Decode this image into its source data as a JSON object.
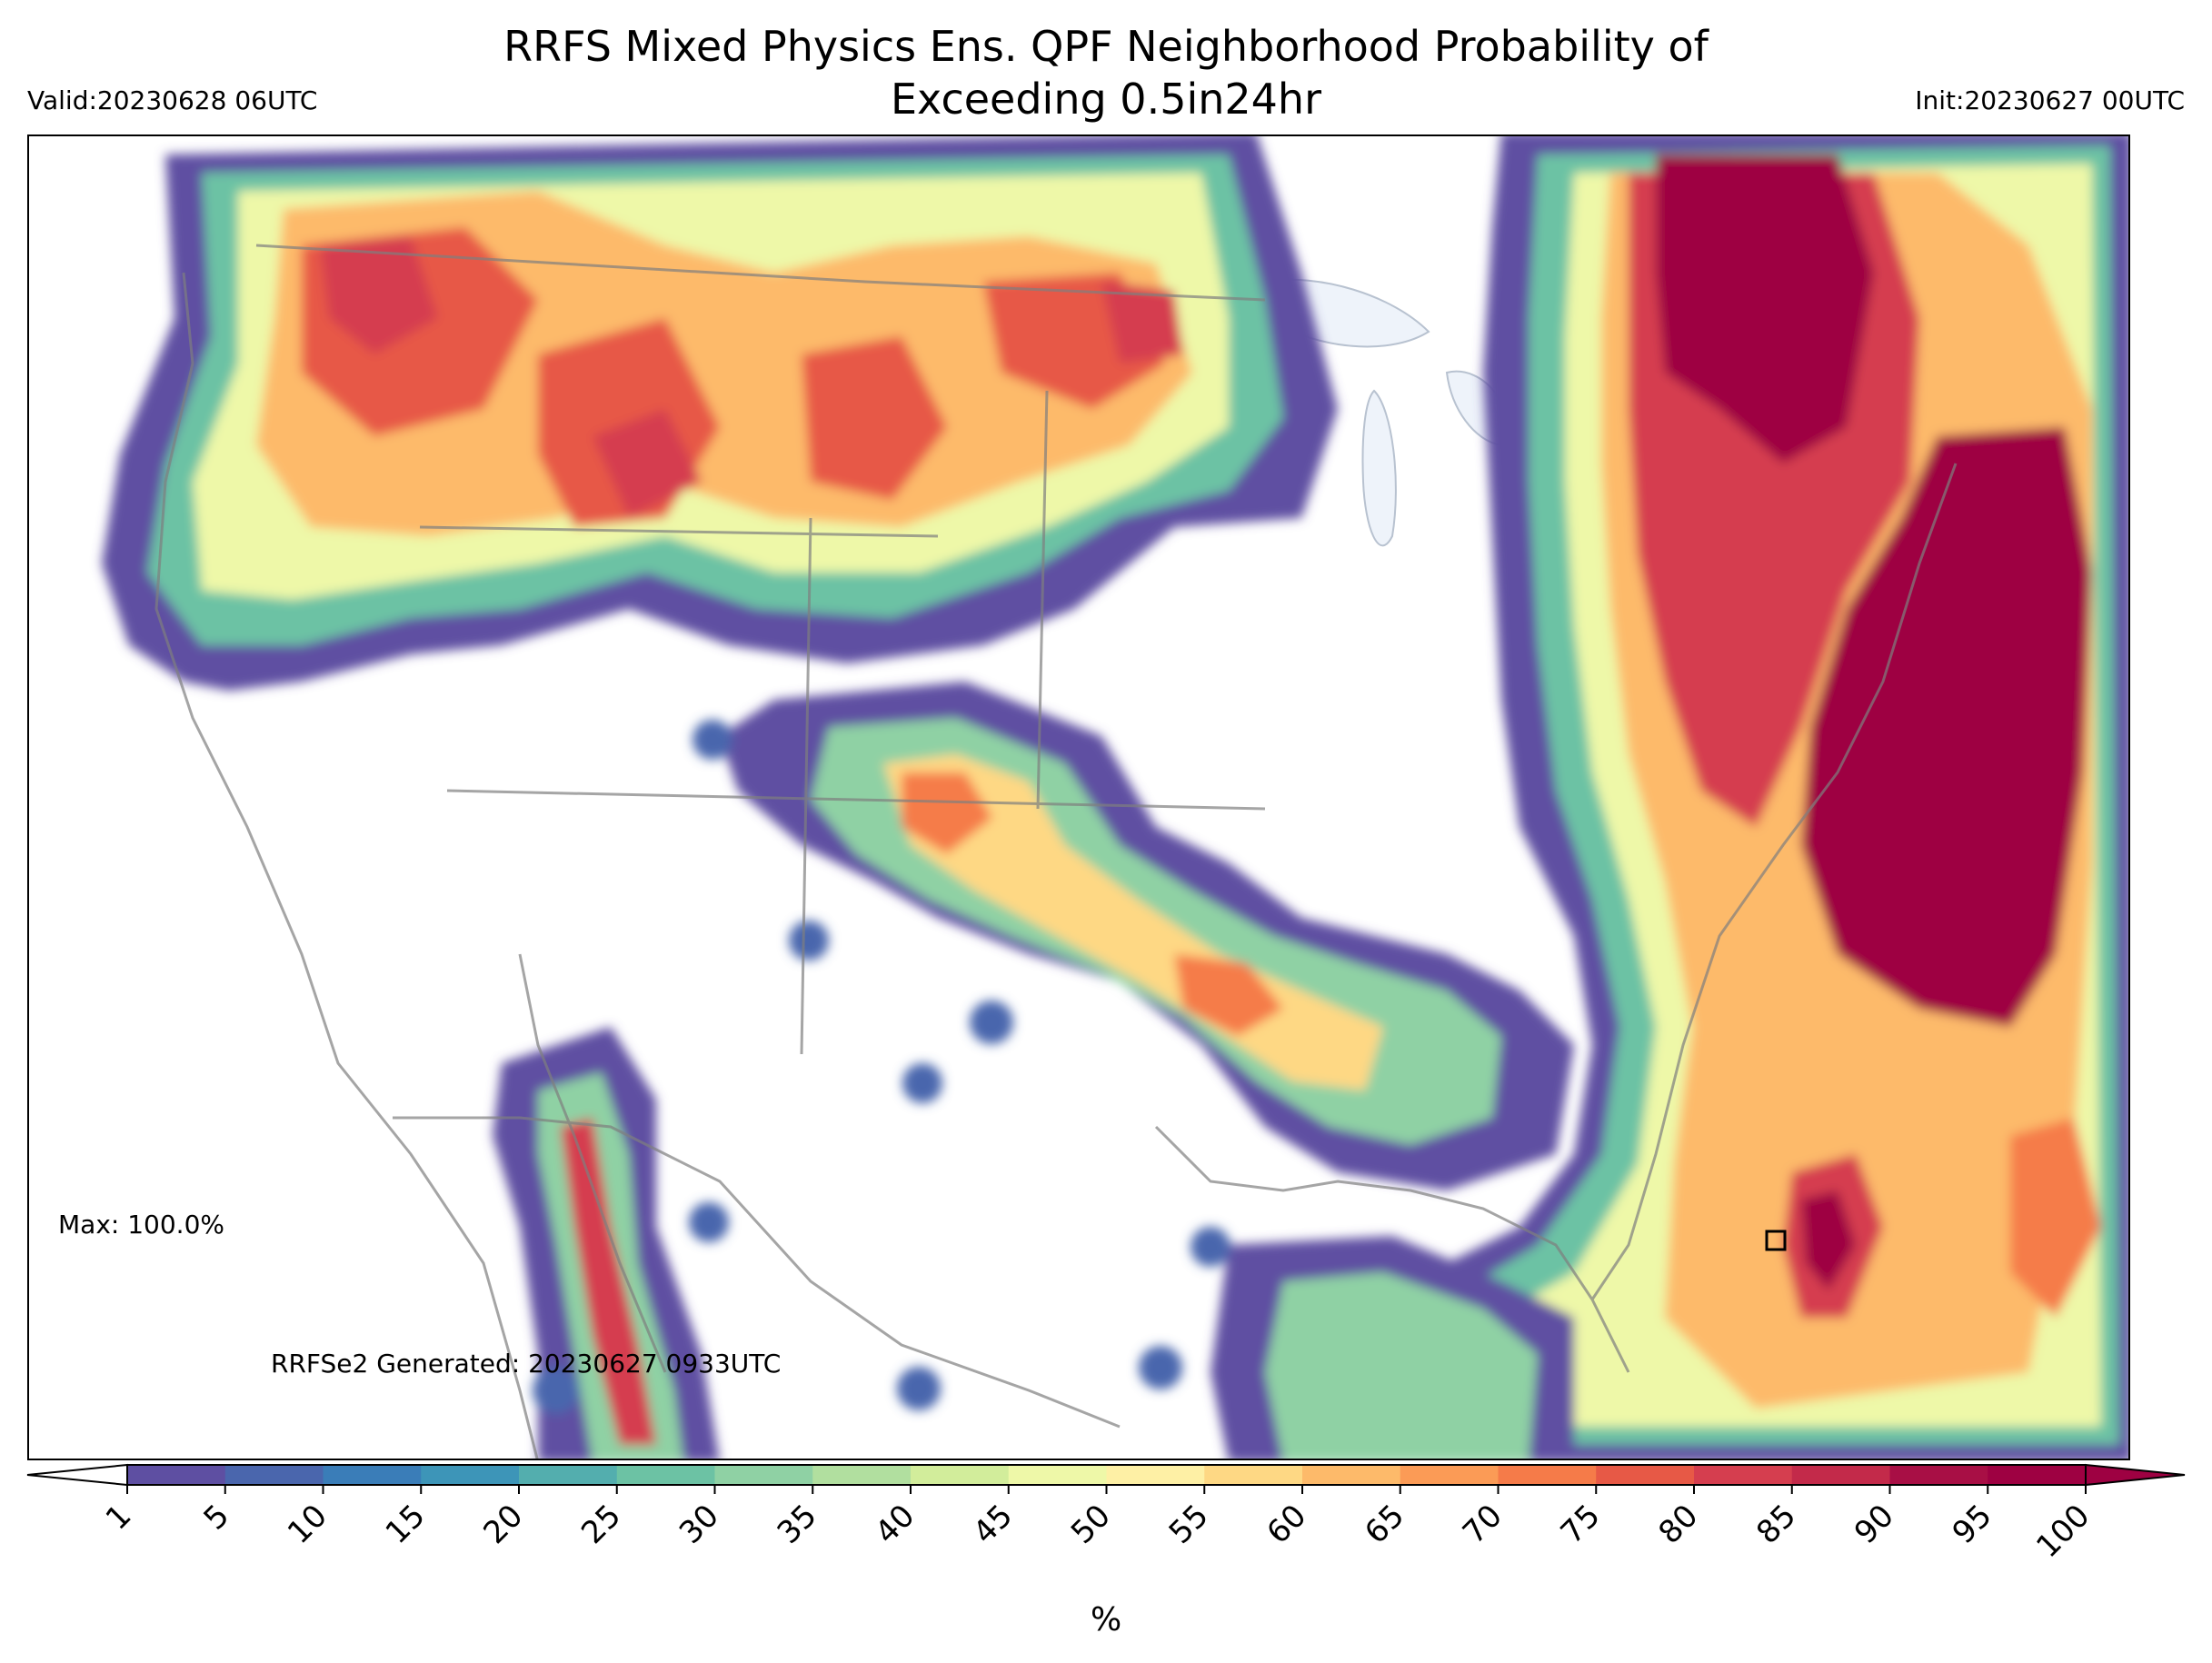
{
  "header": {
    "title_line1": "RRFS Mixed Physics Ens. QPF Neighborhood Probability of",
    "title_line2": "Exceeding 0.5in24hr",
    "valid": "Valid:20230628 06UTC",
    "init": "Init:20230627 00UTC"
  },
  "annotations": {
    "max": "Max: 100.0%",
    "generated": "RRFSe2 Generated: 20230627 0933UTC"
  },
  "colorbar": {
    "label": "%",
    "ticks": [
      "1",
      "5",
      "10",
      "15",
      "20",
      "25",
      "30",
      "35",
      "40",
      "45",
      "50",
      "55",
      "60",
      "65",
      "70",
      "75",
      "80",
      "85",
      "90",
      "95",
      "100"
    ],
    "colors": [
      "#5e4fa2",
      "#4a66ad",
      "#3a7db8",
      "#3d95b8",
      "#53aeae",
      "#6cc2a4",
      "#8fd1a4",
      "#b1df9f",
      "#d2ed9b",
      "#eef8a8",
      "#fef0a5",
      "#fed884",
      "#fdba6a",
      "#fb9b56",
      "#f57b49",
      "#e75946",
      "#d53e4f",
      "#c32a4a",
      "#a80f45",
      "#9e0142"
    ],
    "under_color": "#ffffff",
    "over_color": "#9e0142"
  }
}
